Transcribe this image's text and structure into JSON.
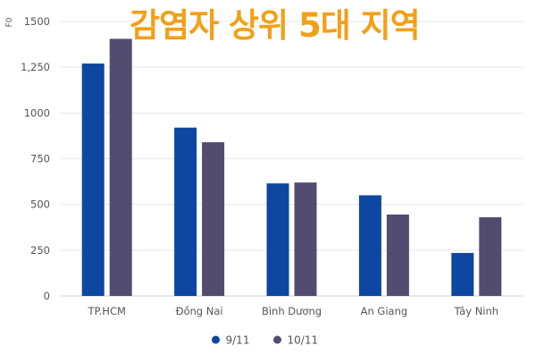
{
  "chart_data": {
    "type": "bar",
    "title": "감염자 상위 5대 지역",
    "ylabel": "F0",
    "xlabel": "",
    "categories": [
      "TP.HCM",
      "Đồng Nai",
      "Bình Dương",
      "An Giang",
      "Tây Ninh"
    ],
    "series": [
      {
        "name": "9/11",
        "values": [
          1270,
          920,
          615,
          550,
          235
        ],
        "color": "#0d47a1"
      },
      {
        "name": "10/11",
        "values": [
          1405,
          840,
          620,
          445,
          430
        ],
        "color": "#524d70"
      }
    ],
    "ylim": [
      0,
      1500
    ],
    "yticks": [
      0,
      250,
      500,
      750,
      1000,
      1250,
      1500
    ],
    "ytick_labels": [
      "0",
      "250",
      "500",
      "750",
      "1000",
      "1,250",
      "1500"
    ],
    "grid": true,
    "legend_position": "bottom-center"
  }
}
